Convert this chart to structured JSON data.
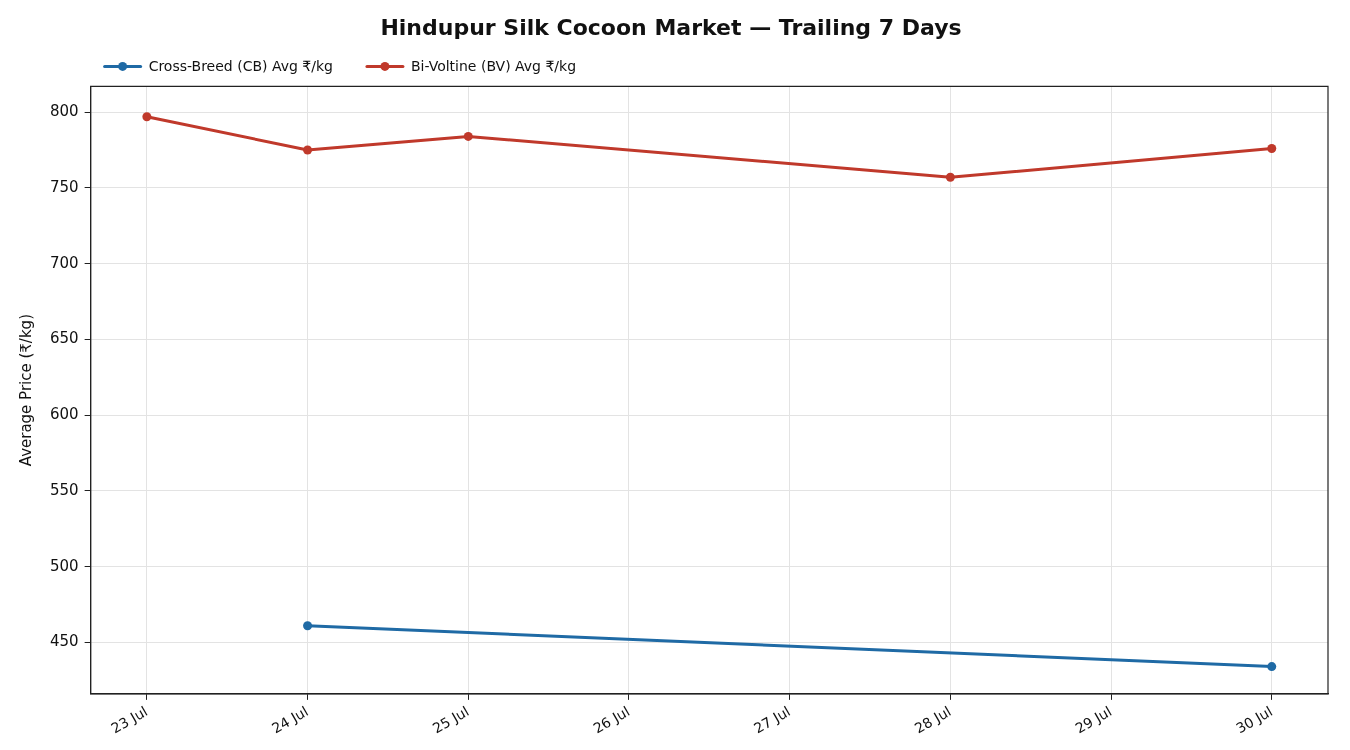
{
  "chart_data": {
    "type": "line",
    "title": "Hindupur Silk Cocoon Market — Trailing 7 Days",
    "ylabel": "Average Price (₹/kg)",
    "xlim": [
      "--07-22T15:36",
      "--07-30T08:24"
    ],
    "xticks": [
      {
        "value": "--07-23",
        "label": "23 Jul"
      },
      {
        "value": "--07-24",
        "label": "24 Jul"
      },
      {
        "value": "--07-25",
        "label": "25 Jul"
      },
      {
        "value": "--07-26",
        "label": "26 Jul"
      },
      {
        "value": "--07-27",
        "label": "27 Jul"
      },
      {
        "value": "--07-28",
        "label": "28 Jul"
      },
      {
        "value": "--07-29",
        "label": "29 Jul"
      },
      {
        "value": "--07-30",
        "label": "30 Jul"
      }
    ],
    "ylim": [
      416,
      817
    ],
    "yticks": [
      450,
      500,
      550,
      600,
      650,
      700,
      750,
      800
    ],
    "series": [
      {
        "name": "Cross-Breed (CB) Avg ₹/kg",
        "color": "#1f6aa5",
        "x": [
          "--07-24",
          "--07-30"
        ],
        "values": [
          461,
          434
        ]
      },
      {
        "name": "Bi-Voltine (BV) Avg ₹/kg",
        "color": "#c0392b",
        "x": [
          "--07-23",
          "--07-24",
          "--07-25",
          "--07-28",
          "--07-30"
        ],
        "values": [
          797,
          775,
          784,
          757,
          776
        ]
      }
    ],
    "grid": true,
    "legend": "top left",
    "marker": "circle",
    "line_style": "solid"
  }
}
